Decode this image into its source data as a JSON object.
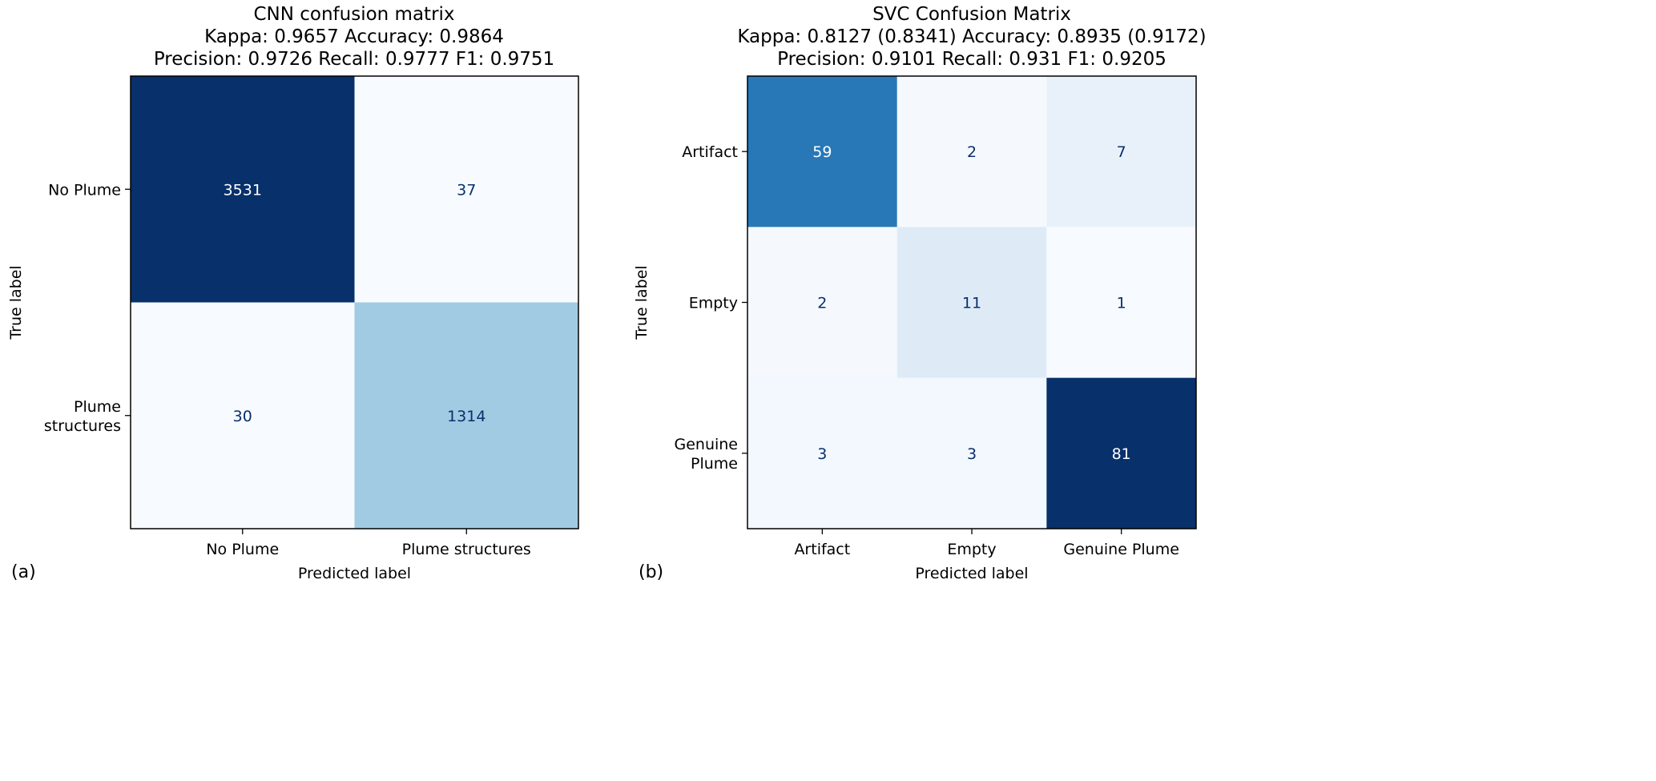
{
  "chart_data": [
    {
      "type": "heatmap",
      "panel_label": "(a)",
      "title_lines": [
        "CNN confusion matrix",
        "Kappa: 0.9657      Accuracy: 0.9864",
        "Precision:  0.9726      Recall:  0.9777      F1:  0.9751"
      ],
      "xlabel": "Predicted label",
      "ylabel": "True label",
      "x_categories": [
        "No Plume",
        "Plume structures"
      ],
      "y_categories": [
        [
          "No Plume"
        ],
        [
          "Plume",
          "structures"
        ]
      ],
      "values": [
        [
          3531,
          37
        ],
        [
          30,
          1314
        ]
      ],
      "colormap": "Blues",
      "colorbar": false
    },
    {
      "type": "heatmap",
      "panel_label": "(b)",
      "title_lines": [
        "SVC Confusion Matrix",
        "Kappa: 0.8127  (0.8341)      Accuracy: 0.8935  (0.9172)",
        "Precision:  0.9101      Recall:  0.931      F1:  0.9205"
      ],
      "xlabel": "Predicted label",
      "ylabel": "True label",
      "x_categories": [
        "Artifact",
        "Empty",
        "Genuine Plume"
      ],
      "y_categories": [
        [
          "Artifact"
        ],
        [
          "Empty"
        ],
        [
          "Genuine",
          "Plume"
        ]
      ],
      "values": [
        [
          59,
          2,
          7
        ],
        [
          2,
          11,
          1
        ],
        [
          3,
          3,
          81
        ]
      ],
      "colormap": "Blues",
      "colorbar": false
    }
  ],
  "colors": {
    "dark_text": "#08306b",
    "light_text": "#ffffff"
  }
}
